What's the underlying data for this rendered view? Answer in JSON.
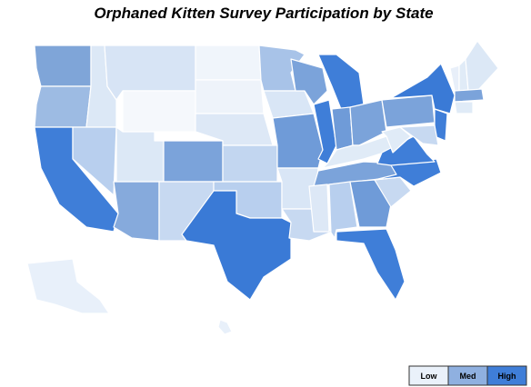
{
  "title": "Orphaned Kitten Survey Participation by State",
  "legend": {
    "items": [
      {
        "label": "Low",
        "color": "#eaf1fa"
      },
      {
        "label": "Med",
        "color": "#8fb0e0"
      },
      {
        "label": "High",
        "color": "#3f7ed8"
      }
    ]
  }
}
